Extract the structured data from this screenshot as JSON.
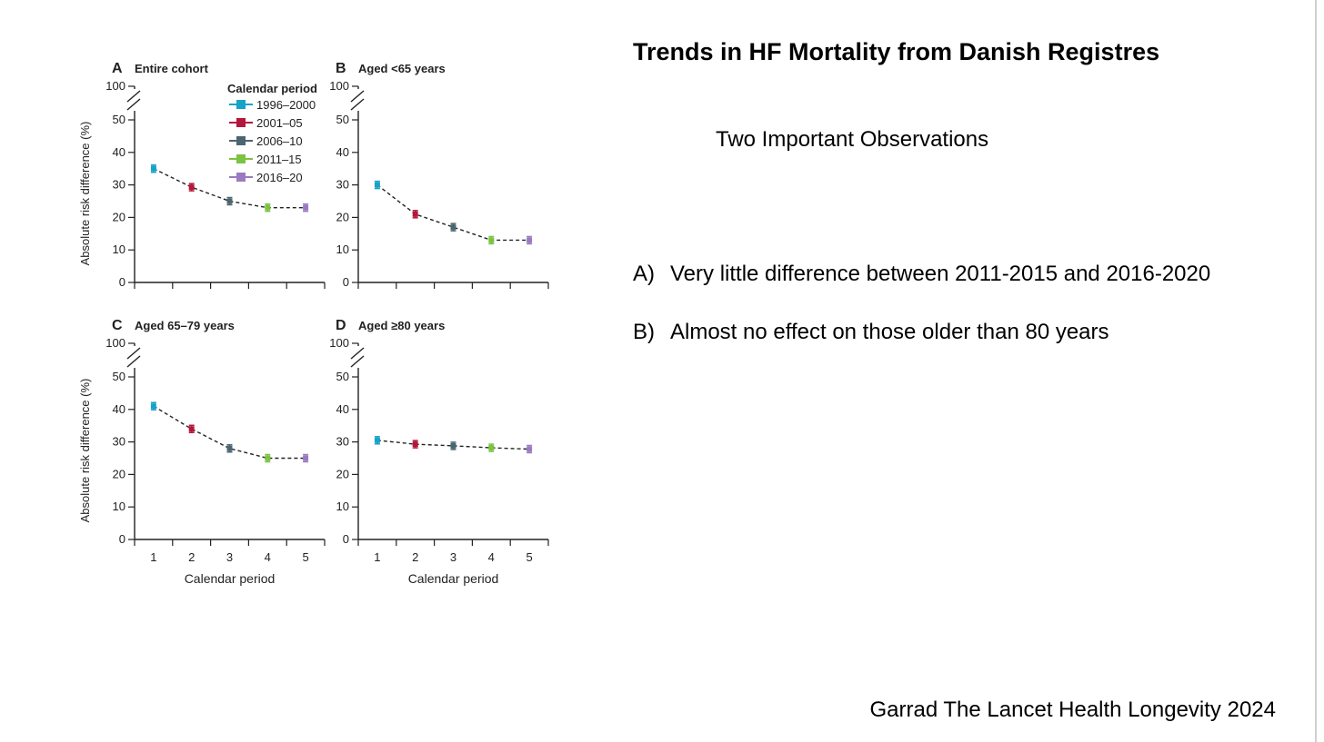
{
  "slide": {
    "title": "Trends in HF Mortality from Danish Registres",
    "subtitle": "Two Important Observations",
    "observations": [
      {
        "marker": "A)",
        "text": "Very little difference between 2011-2015 and 2016-2020"
      },
      {
        "marker": "B)",
        "text": "Almost no effect on those older than 80 years"
      }
    ],
    "citation": "Garrad The Lancet Health Longevity 2024"
  },
  "legend": {
    "title": "Calendar period",
    "entries": [
      {
        "label": "1996–2000",
        "color": "#17a2c8"
      },
      {
        "label": "2001–05",
        "color": "#b5173c"
      },
      {
        "label": "2006–10",
        "color": "#4c6670"
      },
      {
        "label": "2011–15",
        "color": "#7cc243"
      },
      {
        "label": "2016–20",
        "color": "#9b7bc0"
      }
    ]
  },
  "chart_data": [
    {
      "type": "line",
      "panel": "A",
      "title": "Entire cohort",
      "ylabel": "Absolute risk difference (%)",
      "xlabel": "",
      "x": [
        1,
        2,
        3,
        4,
        5
      ],
      "y": [
        35,
        29.3,
        25,
        23,
        23
      ],
      "yticks": [
        0,
        10,
        20,
        30,
        40,
        50,
        100
      ],
      "ylim": [
        0,
        100
      ],
      "axis_break": true,
      "x_tick_labels": false,
      "legend": "top-right"
    },
    {
      "type": "line",
      "panel": "B",
      "title": "Aged <65 years",
      "ylabel": "",
      "xlabel": "",
      "x": [
        1,
        2,
        3,
        4,
        5
      ],
      "y": [
        30,
        21,
        17,
        13,
        13
      ],
      "yticks": [
        0,
        10,
        20,
        30,
        40,
        50,
        100
      ],
      "ylim": [
        0,
        100
      ],
      "axis_break": true,
      "x_tick_labels": false
    },
    {
      "type": "line",
      "panel": "C",
      "title": "Aged 65–79 years",
      "ylabel": "Absolute risk difference (%)",
      "xlabel": "Calendar period",
      "x": [
        1,
        2,
        3,
        4,
        5
      ],
      "y": [
        41,
        34,
        28,
        25,
        25
      ],
      "yticks": [
        0,
        10,
        20,
        30,
        40,
        50,
        100
      ],
      "ylim": [
        0,
        100
      ],
      "axis_break": true,
      "x_tick_labels": true
    },
    {
      "type": "line",
      "panel": "D",
      "title": "Aged ≥80 years",
      "ylabel": "",
      "xlabel": "Calendar period",
      "x": [
        1,
        2,
        3,
        4,
        5
      ],
      "y": [
        30.5,
        29.3,
        28.8,
        28.2,
        27.8
      ],
      "yticks": [
        0,
        10,
        20,
        30,
        40,
        50,
        100
      ],
      "ylim": [
        0,
        100
      ],
      "axis_break": true,
      "x_tick_labels": true
    }
  ]
}
